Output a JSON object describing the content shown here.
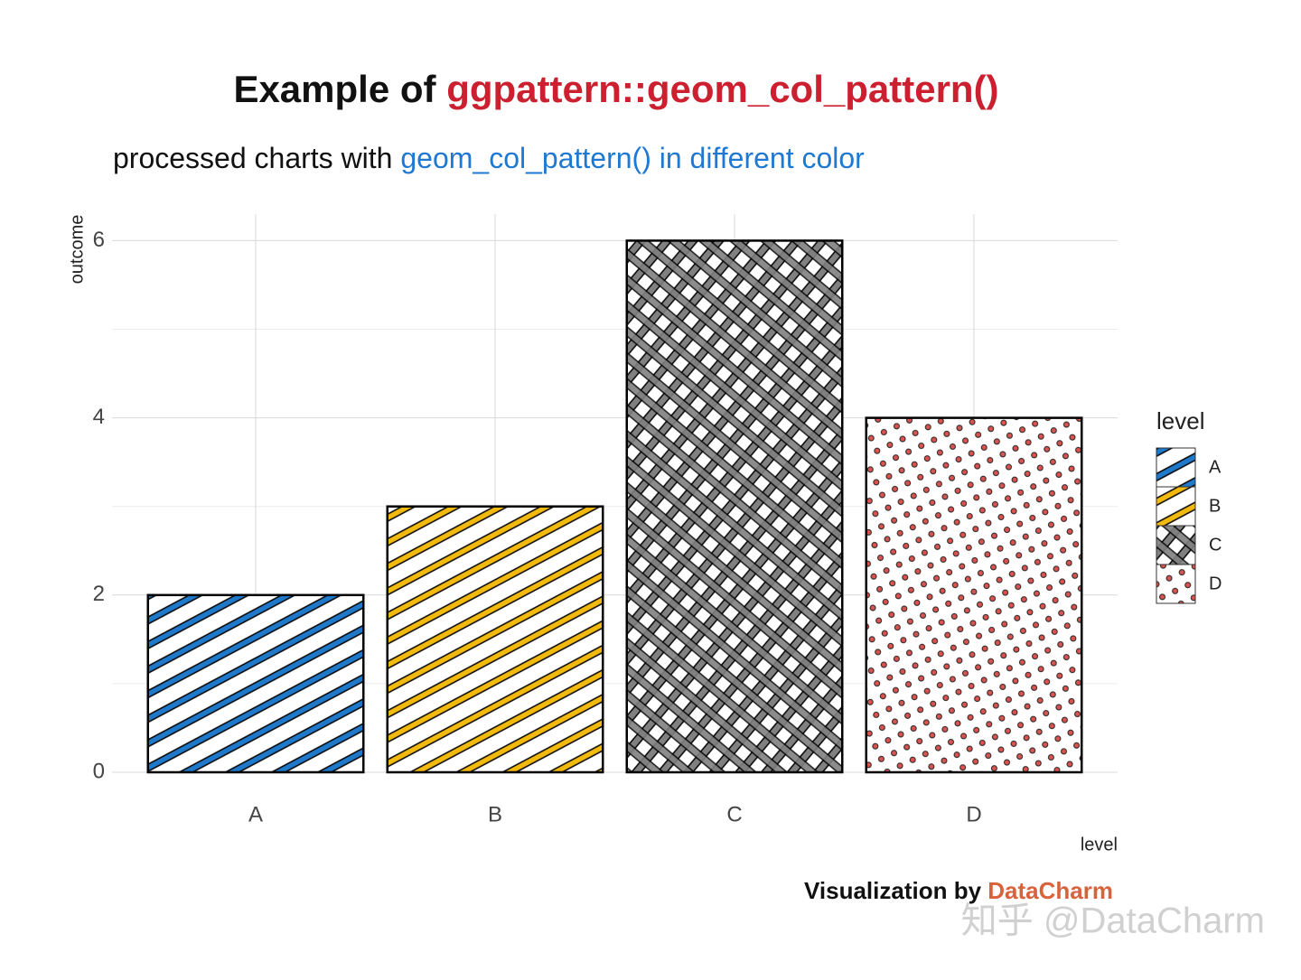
{
  "chart_data": {
    "type": "bar",
    "title": [
      "Example of ",
      "ggpattern::geom_col_pattern()"
    ],
    "title_colors": [
      "#111111",
      "#cc1f2f"
    ],
    "subtitle": [
      "processed charts with ",
      "geom_col_pattern() in different color"
    ],
    "subtitle_colors": [
      "#111111",
      "#1f78d1"
    ],
    "caption": [
      "Visualization by ",
      "DataCharm"
    ],
    "caption_colors": [
      "#111111",
      "#d9623b"
    ],
    "watermark": "知乎 @DataCharm",
    "x_label": "level",
    "y_label": "outcome",
    "categories": [
      "A",
      "B",
      "C",
      "D"
    ],
    "values": [
      2,
      3,
      6,
      4
    ],
    "patterns": [
      "stripe",
      "stripe",
      "crosshatch",
      "circle"
    ],
    "colors": [
      "#1f78c8",
      "#f2b90f",
      "#808080",
      "#d9534f"
    ],
    "ylim": [
      0,
      6.3
    ],
    "yticks": [
      0,
      2,
      4,
      6
    ],
    "y_minor_ticks": [
      1,
      3,
      5
    ],
    "grid": true,
    "legend": {
      "title": "level",
      "position": "right"
    }
  }
}
